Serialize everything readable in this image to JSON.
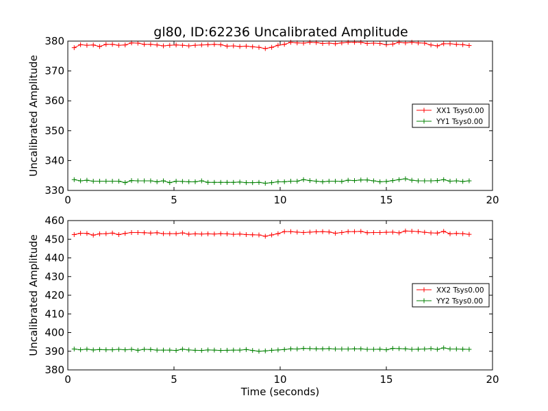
{
  "figure": {
    "title": "gl80, ID:62236 Uncalibrated Amplitude"
  },
  "chart_data": [
    {
      "type": "line",
      "title": "gl80, ID:62236 Uncalibrated Amplitude",
      "xlabel": "",
      "ylabel": "Uncalibrated Amplitude",
      "xlim": [
        0,
        20
      ],
      "ylim": [
        330,
        380
      ],
      "xticks": [
        0,
        5,
        10,
        15,
        20
      ],
      "yticks": [
        330,
        340,
        350,
        360,
        370,
        380
      ],
      "legend_position": "center-right",
      "grid": false,
      "x": [
        0.3,
        0.6,
        0.9,
        1.2,
        1.5,
        1.8,
        2.1,
        2.4,
        2.7,
        3.0,
        3.3,
        3.6,
        3.9,
        4.2,
        4.5,
        4.8,
        5.1,
        5.4,
        5.7,
        6.0,
        6.3,
        6.6,
        6.9,
        7.2,
        7.5,
        7.8,
        8.1,
        8.4,
        8.7,
        9.0,
        9.3,
        9.6,
        9.9,
        10.2,
        10.5,
        10.8,
        11.1,
        11.4,
        11.7,
        12.0,
        12.3,
        12.6,
        12.9,
        13.2,
        13.5,
        13.8,
        14.1,
        14.4,
        14.7,
        15.0,
        15.3,
        15.6,
        15.9,
        16.2,
        16.5,
        16.8,
        17.1,
        17.4,
        17.7,
        18.0,
        18.3,
        18.6,
        18.9
      ],
      "series": [
        {
          "name": "XX1 Tsys0.00",
          "color": "#ff0000",
          "values": [
            377.8,
            378.8,
            378.6,
            378.7,
            378.2,
            378.9,
            378.9,
            378.6,
            378.7,
            379.4,
            379.3,
            378.9,
            378.9,
            378.7,
            378.4,
            378.6,
            378.7,
            378.6,
            378.4,
            378.6,
            378.7,
            378.8,
            378.9,
            378.8,
            378.3,
            378.4,
            378.2,
            378.3,
            378.1,
            377.9,
            377.5,
            377.9,
            378.6,
            378.9,
            379.6,
            379.4,
            379.3,
            379.6,
            379.5,
            379.2,
            379.3,
            379.1,
            379.4,
            379.6,
            379.6,
            379.6,
            379.2,
            379.3,
            379.2,
            378.8,
            379.0,
            379.6,
            379.4,
            379.6,
            379.4,
            379.3,
            378.7,
            378.4,
            379.1,
            379.1,
            378.9,
            378.8,
            378.5
          ]
        },
        {
          "name": "YY1 Tsys0.00",
          "color": "#008000",
          "values": [
            333.6,
            333.2,
            333.4,
            333.1,
            333.1,
            333.1,
            333.1,
            333.1,
            332.6,
            333.3,
            333.2,
            333.2,
            333.2,
            332.9,
            333.2,
            332.6,
            333.1,
            333.0,
            332.9,
            332.9,
            333.2,
            332.7,
            332.7,
            332.7,
            332.7,
            332.7,
            332.8,
            332.6,
            332.6,
            332.7,
            332.4,
            332.6,
            332.9,
            332.9,
            333.1,
            333.1,
            333.6,
            333.3,
            333.1,
            332.9,
            333.1,
            333.1,
            333.0,
            333.4,
            333.3,
            333.5,
            333.5,
            333.2,
            332.9,
            333.0,
            333.3,
            333.6,
            333.9,
            333.4,
            333.2,
            333.2,
            333.2,
            333.3,
            333.6,
            333.1,
            333.2,
            333.0,
            333.2
          ]
        }
      ]
    },
    {
      "type": "line",
      "title": "",
      "xlabel": "Time (seconds)",
      "ylabel": "Uncalibrated Amplitude",
      "xlim": [
        0,
        20
      ],
      "ylim": [
        380,
        460
      ],
      "xticks": [
        0,
        5,
        10,
        15,
        20
      ],
      "yticks": [
        380,
        390,
        400,
        410,
        420,
        430,
        440,
        450,
        460
      ],
      "legend_position": "center-right",
      "grid": false,
      "x": [
        0.3,
        0.6,
        0.9,
        1.2,
        1.5,
        1.8,
        2.1,
        2.4,
        2.7,
        3.0,
        3.3,
        3.6,
        3.9,
        4.2,
        4.5,
        4.8,
        5.1,
        5.4,
        5.7,
        6.0,
        6.3,
        6.6,
        6.9,
        7.2,
        7.5,
        7.8,
        8.1,
        8.4,
        8.7,
        9.0,
        9.3,
        9.6,
        9.9,
        10.2,
        10.5,
        10.8,
        11.1,
        11.4,
        11.7,
        12.0,
        12.3,
        12.6,
        12.9,
        13.2,
        13.5,
        13.8,
        14.1,
        14.4,
        14.7,
        15.0,
        15.3,
        15.6,
        15.9,
        16.2,
        16.5,
        16.8,
        17.1,
        17.4,
        17.7,
        18.0,
        18.3,
        18.6,
        18.9
      ],
      "series": [
        {
          "name": "XX2 Tsys0.00",
          "color": "#ff0000",
          "values": [
            452.5,
            453.2,
            453.1,
            452.2,
            452.9,
            453.0,
            453.3,
            452.5,
            453.1,
            453.6,
            453.6,
            453.5,
            453.3,
            453.5,
            453.0,
            453.0,
            453.0,
            453.4,
            452.7,
            452.9,
            452.8,
            452.9,
            452.8,
            453.0,
            452.9,
            452.6,
            452.8,
            452.5,
            452.4,
            452.3,
            451.6,
            452.3,
            453.0,
            454.1,
            454.1,
            453.8,
            453.6,
            453.8,
            454.0,
            454.1,
            453.9,
            453.2,
            453.6,
            454.1,
            454.1,
            454.2,
            453.5,
            453.6,
            453.6,
            453.7,
            453.8,
            453.4,
            454.4,
            454.3,
            454.1,
            453.7,
            453.4,
            453.3,
            454.2,
            452.9,
            453.1,
            453.0,
            452.6
          ]
        },
        {
          "name": "YY2 Tsys0.00",
          "color": "#008000",
          "values": [
            391.2,
            390.8,
            391.1,
            390.7,
            390.9,
            390.8,
            390.8,
            391.0,
            390.8,
            391.0,
            390.5,
            391.0,
            390.9,
            390.6,
            390.6,
            390.6,
            390.4,
            391.1,
            390.7,
            390.5,
            390.4,
            390.7,
            390.6,
            390.4,
            390.5,
            390.6,
            390.6,
            390.9,
            390.4,
            390.0,
            390.2,
            390.5,
            390.7,
            390.9,
            391.3,
            391.2,
            391.5,
            391.4,
            391.3,
            391.3,
            391.4,
            391.2,
            391.2,
            391.2,
            391.3,
            391.3,
            391.0,
            391.0,
            391.1,
            390.8,
            391.5,
            391.4,
            391.3,
            391.0,
            391.1,
            391.2,
            391.4,
            391.0,
            391.8,
            391.2,
            391.2,
            391.1,
            391.0
          ]
        }
      ]
    }
  ]
}
